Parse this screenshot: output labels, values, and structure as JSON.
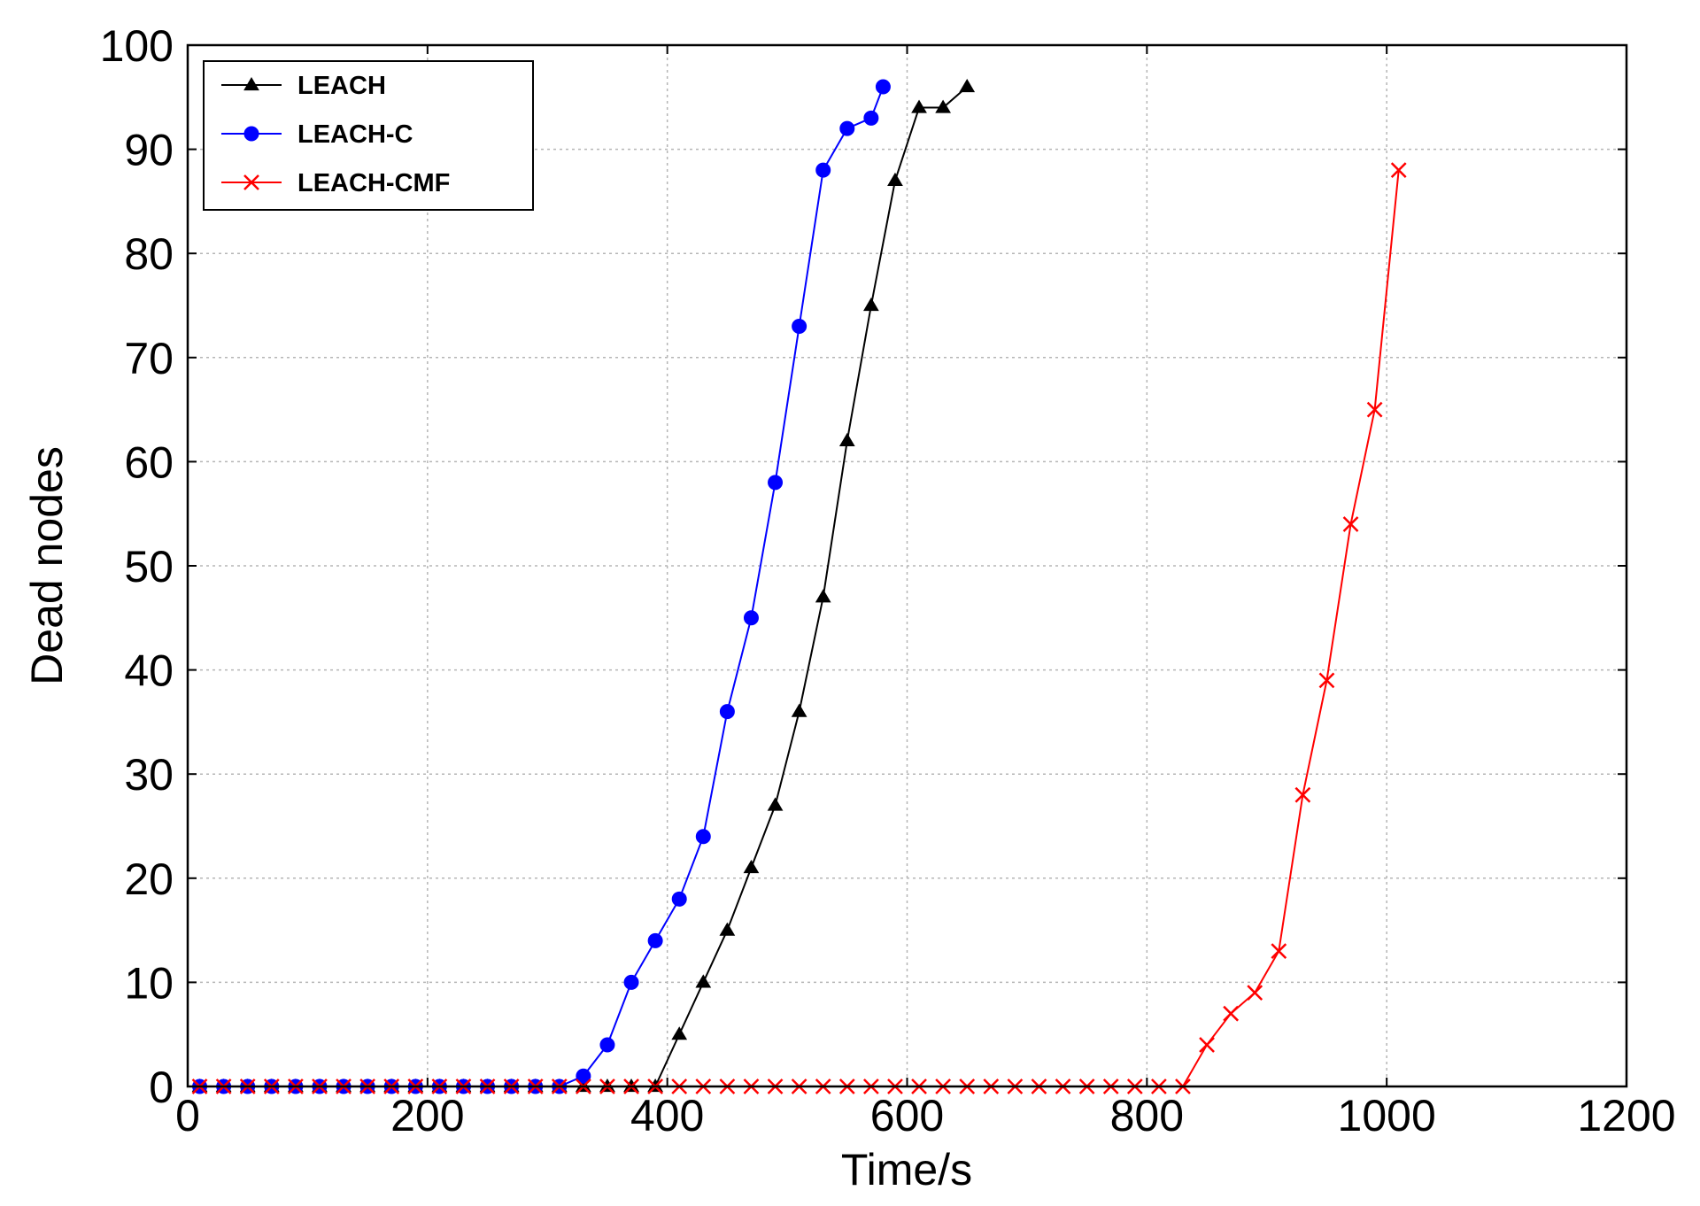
{
  "chart_data": {
    "type": "line",
    "xlabel": "Time/s",
    "ylabel": "Dead nodes",
    "xlim": [
      0,
      1200
    ],
    "ylim": [
      0,
      100
    ],
    "xticks": [
      0,
      200,
      400,
      600,
      800,
      1000,
      1200
    ],
    "yticks": [
      0,
      10,
      20,
      30,
      40,
      50,
      60,
      70,
      80,
      90,
      100
    ],
    "grid": true,
    "legend_position": "top-left",
    "series": [
      {
        "name": "LEACH",
        "color": "#000000",
        "marker": "triangle",
        "x": [
          10,
          30,
          50,
          70,
          90,
          110,
          130,
          150,
          170,
          190,
          210,
          230,
          250,
          270,
          290,
          310,
          330,
          350,
          370,
          390,
          410,
          430,
          450,
          470,
          490,
          510,
          530,
          550,
          570,
          590,
          610,
          630,
          650
        ],
        "y": [
          0,
          0,
          0,
          0,
          0,
          0,
          0,
          0,
          0,
          0,
          0,
          0,
          0,
          0,
          0,
          0,
          0,
          0,
          0,
          0,
          5,
          10,
          15,
          21,
          27,
          36,
          47,
          62,
          75,
          87,
          94,
          94,
          96
        ]
      },
      {
        "name": "LEACH-C",
        "color": "#0000ff",
        "marker": "circle",
        "x": [
          10,
          30,
          50,
          70,
          90,
          110,
          130,
          150,
          170,
          190,
          210,
          230,
          250,
          270,
          290,
          310,
          330,
          350,
          370,
          390,
          410,
          430,
          450,
          470,
          490,
          510,
          530,
          550,
          570,
          580
        ],
        "y": [
          0,
          0,
          0,
          0,
          0,
          0,
          0,
          0,
          0,
          0,
          0,
          0,
          0,
          0,
          0,
          0,
          1,
          4,
          10,
          14,
          18,
          24,
          36,
          45,
          58,
          73,
          88,
          92,
          93,
          96
        ]
      },
      {
        "name": "LEACH-CMF",
        "color": "#ff0000",
        "marker": "x",
        "x": [
          10,
          30,
          50,
          70,
          90,
          110,
          130,
          150,
          170,
          190,
          210,
          230,
          250,
          270,
          290,
          310,
          330,
          350,
          370,
          390,
          410,
          430,
          450,
          470,
          490,
          510,
          530,
          550,
          570,
          590,
          610,
          630,
          650,
          670,
          690,
          710,
          730,
          750,
          770,
          790,
          810,
          830,
          850,
          870,
          890,
          910,
          930,
          950,
          970,
          990,
          1010
        ],
        "y": [
          0,
          0,
          0,
          0,
          0,
          0,
          0,
          0,
          0,
          0,
          0,
          0,
          0,
          0,
          0,
          0,
          0,
          0,
          0,
          0,
          0,
          0,
          0,
          0,
          0,
          0,
          0,
          0,
          0,
          0,
          0,
          0,
          0,
          0,
          0,
          0,
          0,
          0,
          0,
          0,
          0,
          0,
          4,
          7,
          9,
          13,
          28,
          39,
          54,
          65,
          88
        ]
      }
    ]
  }
}
